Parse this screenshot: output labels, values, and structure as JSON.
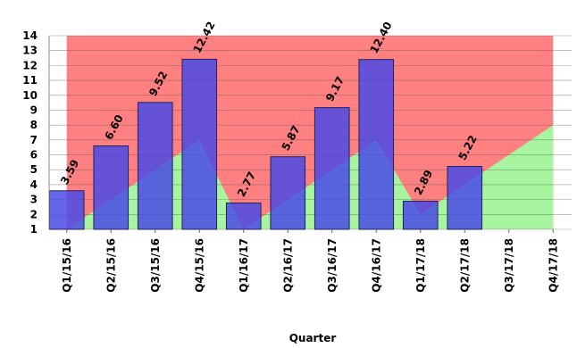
{
  "chart_data": {
    "type": "bar",
    "x_label": "Quarter",
    "categories": [
      "Q1/15/16",
      "Q2/15/16",
      "Q3/15/16",
      "Q4/15/16",
      "Q1/16/17",
      "Q2/16/17",
      "Q3/16/17",
      "Q4/16/17",
      "Q1/17/18",
      "Q2/17/18",
      "Q3/17/18",
      "Q4/17/18"
    ],
    "series": [
      {
        "type": "area",
        "color": "#ff8080",
        "values": [
          14,
          14,
          14,
          14,
          14,
          14,
          14,
          14,
          14,
          14,
          14,
          14
        ]
      },
      {
        "type": "area",
        "color": "#a8f5a0",
        "values": [
          1,
          3,
          5,
          7,
          1,
          3,
          5,
          7,
          2,
          4,
          6,
          8
        ]
      },
      {
        "type": "bar",
        "color": "#4a4ae6",
        "values": [
          3.59,
          6.6,
          9.52,
          12.42,
          2.77,
          5.87,
          9.17,
          12.4,
          2.89,
          5.22,
          null,
          null
        ],
        "value_labels": [
          "3.59",
          "6.60",
          "9.52",
          "12.42",
          "2.77",
          "5.87",
          "9.17",
          "12.40",
          "2.89",
          "5.22",
          null,
          null
        ]
      }
    ],
    "ylim": [
      1,
      14
    ],
    "yticks": [
      1,
      2,
      3,
      4,
      5,
      6,
      7,
      8,
      9,
      10,
      11,
      12,
      13,
      14
    ],
    "grid": true
  }
}
